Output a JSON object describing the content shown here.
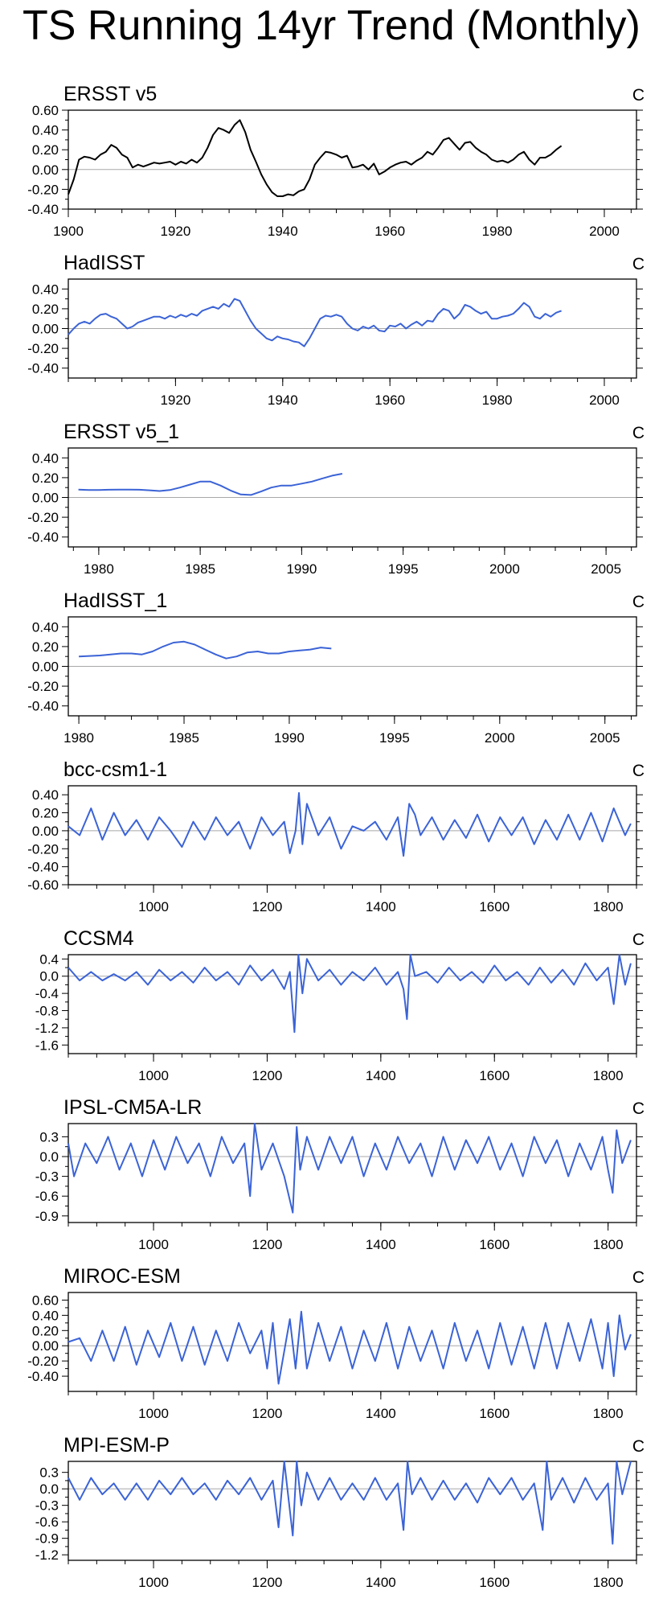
{
  "title": "TS Running 14yr Trend (Monthly)",
  "colors": {
    "observed": "#000000",
    "model": "#3b63d6",
    "zero_line": "#a8a8a8",
    "axes": "#000000"
  },
  "chart_data": [
    {
      "type": "line",
      "title": "ERSST v5",
      "unit": "C",
      "color": "#000000",
      "xlim": [
        1900,
        2006
      ],
      "ylim": [
        -0.4,
        0.6
      ],
      "xticks": [
        1900,
        1920,
        1940,
        1960,
        1980,
        2000
      ],
      "yticks": [
        -0.4,
        -0.2,
        0.0,
        0.2,
        0.4,
        0.6
      ],
      "ytick_decimals": 2,
      "x": [
        1900,
        1901,
        1902,
        1903,
        1904,
        1905,
        1906,
        1907,
        1908,
        1909,
        1910,
        1911,
        1912,
        1913,
        1914,
        1915,
        1916,
        1917,
        1918,
        1919,
        1920,
        1921,
        1922,
        1923,
        1924,
        1925,
        1926,
        1927,
        1928,
        1929,
        1930,
        1931,
        1932,
        1933,
        1934,
        1935,
        1936,
        1937,
        1938,
        1939,
        1940,
        1941,
        1942,
        1943,
        1944,
        1945,
        1946,
        1947,
        1948,
        1949,
        1950,
        1951,
        1952,
        1953,
        1954,
        1955,
        1956,
        1957,
        1958,
        1959,
        1960,
        1961,
        1962,
        1963,
        1964,
        1965,
        1966,
        1967,
        1968,
        1969,
        1970,
        1971,
        1972,
        1973,
        1974,
        1975,
        1976,
        1977,
        1978,
        1979,
        1980,
        1981,
        1982,
        1983,
        1984,
        1985,
        1986,
        1987,
        1988,
        1989,
        1990,
        1991,
        1992
      ],
      "values": [
        -0.25,
        -0.1,
        0.1,
        0.13,
        0.12,
        0.1,
        0.15,
        0.18,
        0.25,
        0.22,
        0.15,
        0.12,
        0.02,
        0.05,
        0.03,
        0.05,
        0.07,
        0.06,
        0.07,
        0.08,
        0.05,
        0.08,
        0.06,
        0.1,
        0.07,
        0.12,
        0.22,
        0.35,
        0.42,
        0.4,
        0.37,
        0.45,
        0.5,
        0.38,
        0.2,
        0.08,
        -0.05,
        -0.15,
        -0.23,
        -0.27,
        -0.27,
        -0.25,
        -0.26,
        -0.22,
        -0.2,
        -0.1,
        0.05,
        0.12,
        0.18,
        0.17,
        0.15,
        0.12,
        0.14,
        0.02,
        0.03,
        0.05,
        0.0,
        0.06,
        -0.05,
        -0.02,
        0.02,
        0.05,
        0.07,
        0.08,
        0.05,
        0.09,
        0.12,
        0.18,
        0.15,
        0.22,
        0.3,
        0.32,
        0.26,
        0.2,
        0.27,
        0.28,
        0.22,
        0.18,
        0.15,
        0.1,
        0.08,
        0.09,
        0.07,
        0.1,
        0.15,
        0.18,
        0.1,
        0.05,
        0.12,
        0.12,
        0.15,
        0.2,
        0.24
      ]
    },
    {
      "type": "line",
      "title": "HadISST",
      "unit": "C",
      "color": "#3b63d6",
      "xlim": [
        1900,
        2006
      ],
      "ylim": [
        -0.5,
        0.5
      ],
      "xticks": [
        1920,
        1940,
        1960,
        1980,
        2000
      ],
      "yticks": [
        -0.4,
        -0.2,
        0.0,
        0.2,
        0.4
      ],
      "ytick_decimals": 2,
      "x": [
        1900,
        1901,
        1902,
        1903,
        1904,
        1905,
        1906,
        1907,
        1908,
        1909,
        1910,
        1911,
        1912,
        1913,
        1914,
        1915,
        1916,
        1917,
        1918,
        1919,
        1920,
        1921,
        1922,
        1923,
        1924,
        1925,
        1926,
        1927,
        1928,
        1929,
        1930,
        1931,
        1932,
        1933,
        1934,
        1935,
        1936,
        1937,
        1938,
        1939,
        1940,
        1941,
        1942,
        1943,
        1944,
        1945,
        1946,
        1947,
        1948,
        1949,
        1950,
        1951,
        1952,
        1953,
        1954,
        1955,
        1956,
        1957,
        1958,
        1959,
        1960,
        1961,
        1962,
        1963,
        1964,
        1965,
        1966,
        1967,
        1968,
        1969,
        1970,
        1971,
        1972,
        1973,
        1974,
        1975,
        1976,
        1977,
        1978,
        1979,
        1980,
        1981,
        1982,
        1983,
        1984,
        1985,
        1986,
        1987,
        1988,
        1989,
        1990,
        1991,
        1992
      ],
      "values": [
        -0.06,
        0.0,
        0.05,
        0.07,
        0.05,
        0.1,
        0.14,
        0.15,
        0.12,
        0.1,
        0.05,
        0.0,
        0.02,
        0.06,
        0.08,
        0.1,
        0.12,
        0.12,
        0.1,
        0.13,
        0.11,
        0.14,
        0.12,
        0.15,
        0.13,
        0.18,
        0.2,
        0.22,
        0.2,
        0.25,
        0.22,
        0.3,
        0.28,
        0.18,
        0.08,
        0.0,
        -0.05,
        -0.1,
        -0.12,
        -0.08,
        -0.1,
        -0.11,
        -0.13,
        -0.14,
        -0.18,
        -0.1,
        0.0,
        0.1,
        0.13,
        0.12,
        0.14,
        0.12,
        0.05,
        0.0,
        -0.02,
        0.02,
        0.0,
        0.03,
        -0.02,
        -0.03,
        0.03,
        0.02,
        0.05,
        0.0,
        0.04,
        0.07,
        0.03,
        0.08,
        0.07,
        0.15,
        0.2,
        0.18,
        0.1,
        0.15,
        0.24,
        0.22,
        0.18,
        0.15,
        0.17,
        0.1,
        0.1,
        0.12,
        0.13,
        0.15,
        0.2,
        0.26,
        0.22,
        0.12,
        0.1,
        0.15,
        0.12,
        0.16,
        0.18
      ]
    },
    {
      "type": "line",
      "title": "ERSST v5_1",
      "unit": "C",
      "color": "#3b63d6",
      "xlim": [
        1978.5,
        2006.5
      ],
      "ylim": [
        -0.5,
        0.5
      ],
      "xticks": [
        1980,
        1985,
        1990,
        1995,
        2000,
        2005
      ],
      "yticks": [
        -0.4,
        -0.2,
        0.0,
        0.2,
        0.4
      ],
      "ytick_decimals": 2,
      "x": [
        1979,
        1979.5,
        1980,
        1980.5,
        1981,
        1981.5,
        1982,
        1982.5,
        1983,
        1983.5,
        1984,
        1984.5,
        1985,
        1985.5,
        1986,
        1986.5,
        1987,
        1987.5,
        1988,
        1988.5,
        1989,
        1989.5,
        1990,
        1990.5,
        1991,
        1991.5,
        1992
      ],
      "values": [
        0.08,
        0.075,
        0.075,
        0.078,
        0.08,
        0.08,
        0.078,
        0.072,
        0.065,
        0.075,
        0.1,
        0.13,
        0.16,
        0.16,
        0.12,
        0.07,
        0.03,
        0.025,
        0.06,
        0.1,
        0.12,
        0.12,
        0.14,
        0.16,
        0.19,
        0.22,
        0.24
      ]
    },
    {
      "type": "line",
      "title": "HadISST_1",
      "unit": "C",
      "color": "#3b63d6",
      "xlim": [
        1979.5,
        2006.5
      ],
      "ylim": [
        -0.5,
        0.5
      ],
      "xticks": [
        1980,
        1985,
        1990,
        1995,
        2000,
        2005
      ],
      "yticks": [
        -0.4,
        -0.2,
        0.0,
        0.2,
        0.4
      ],
      "ytick_decimals": 2,
      "x": [
        1980,
        1980.5,
        1981,
        1981.5,
        1982,
        1982.5,
        1983,
        1983.5,
        1984,
        1984.5,
        1985,
        1985.5,
        1986,
        1986.5,
        1987,
        1987.5,
        1988,
        1988.5,
        1989,
        1989.5,
        1990,
        1990.5,
        1991,
        1991.5,
        1992
      ],
      "values": [
        0.1,
        0.105,
        0.11,
        0.12,
        0.13,
        0.13,
        0.12,
        0.15,
        0.2,
        0.24,
        0.25,
        0.22,
        0.17,
        0.12,
        0.08,
        0.1,
        0.14,
        0.15,
        0.13,
        0.13,
        0.15,
        0.16,
        0.17,
        0.19,
        0.18
      ]
    },
    {
      "type": "line",
      "title": "bcc-csm1-1",
      "unit": "C",
      "color": "#3b63d6",
      "xlim": [
        850,
        1850
      ],
      "ylim": [
        -0.6,
        0.5
      ],
      "xticks": [
        1000,
        1200,
        1400,
        1600,
        1800
      ],
      "yticks": [
        -0.6,
        -0.4,
        -0.2,
        0.0,
        0.2,
        0.4
      ],
      "ytick_decimals": 2,
      "x": [
        850,
        870,
        890,
        910,
        930,
        950,
        970,
        990,
        1010,
        1030,
        1050,
        1070,
        1090,
        1110,
        1130,
        1150,
        1170,
        1190,
        1210,
        1230,
        1240,
        1250,
        1256,
        1262,
        1270,
        1290,
        1310,
        1330,
        1350,
        1370,
        1390,
        1410,
        1430,
        1440,
        1450,
        1460,
        1470,
        1490,
        1510,
        1530,
        1550,
        1570,
        1590,
        1610,
        1630,
        1650,
        1670,
        1690,
        1710,
        1730,
        1750,
        1770,
        1790,
        1810,
        1830,
        1840
      ],
      "values": [
        0.05,
        -0.05,
        0.25,
        -0.1,
        0.2,
        -0.05,
        0.12,
        -0.1,
        0.15,
        0.0,
        -0.18,
        0.1,
        -0.1,
        0.15,
        -0.05,
        0.1,
        -0.2,
        0.15,
        -0.05,
        0.1,
        -0.25,
        0.0,
        0.42,
        -0.15,
        0.3,
        -0.05,
        0.15,
        -0.2,
        0.05,
        0.0,
        0.1,
        -0.1,
        0.15,
        -0.28,
        0.3,
        0.18,
        -0.05,
        0.15,
        -0.1,
        0.12,
        -0.08,
        0.18,
        -0.12,
        0.15,
        -0.05,
        0.15,
        -0.15,
        0.12,
        -0.1,
        0.18,
        -0.1,
        0.2,
        -0.12,
        0.25,
        -0.05,
        0.08
      ]
    },
    {
      "type": "line",
      "title": "CCSM4",
      "unit": "C",
      "color": "#3b63d6",
      "xlim": [
        850,
        1850
      ],
      "ylim": [
        -1.8,
        0.5
      ],
      "xticks": [
        1000,
        1200,
        1400,
        1600,
        1800
      ],
      "yticks": [
        -1.6,
        -1.2,
        -0.8,
        -0.4,
        0.0,
        0.4
      ],
      "ytick_decimals": 1,
      "x": [
        850,
        870,
        890,
        910,
        930,
        950,
        970,
        990,
        1010,
        1030,
        1050,
        1070,
        1090,
        1110,
        1130,
        1150,
        1170,
        1190,
        1210,
        1230,
        1240,
        1248,
        1255,
        1262,
        1270,
        1290,
        1310,
        1330,
        1350,
        1370,
        1390,
        1410,
        1430,
        1440,
        1446,
        1452,
        1460,
        1480,
        1500,
        1520,
        1540,
        1560,
        1580,
        1600,
        1620,
        1640,
        1660,
        1680,
        1700,
        1720,
        1740,
        1760,
        1780,
        1800,
        1810,
        1820,
        1830,
        1840
      ],
      "values": [
        0.2,
        -0.1,
        0.1,
        -0.1,
        0.05,
        -0.1,
        0.1,
        -0.2,
        0.15,
        -0.1,
        0.1,
        -0.15,
        0.2,
        -0.1,
        0.1,
        -0.2,
        0.25,
        -0.1,
        0.15,
        -0.3,
        0.1,
        -1.3,
        0.5,
        -0.4,
        0.4,
        -0.1,
        0.15,
        -0.2,
        0.1,
        -0.1,
        0.2,
        -0.2,
        0.1,
        -0.3,
        -1.0,
        0.5,
        0.0,
        0.1,
        -0.15,
        0.2,
        -0.1,
        0.1,
        -0.15,
        0.25,
        -0.1,
        0.1,
        -0.2,
        0.2,
        -0.15,
        0.15,
        -0.2,
        0.3,
        -0.1,
        0.2,
        -0.65,
        0.5,
        -0.2,
        0.3
      ]
    },
    {
      "type": "line",
      "title": "IPSL-CM5A-LR",
      "unit": "C",
      "color": "#3b63d6",
      "xlim": [
        850,
        1850
      ],
      "ylim": [
        -1.0,
        0.5
      ],
      "xticks": [
        1000,
        1200,
        1400,
        1600,
        1800
      ],
      "yticks": [
        -0.9,
        -0.6,
        -0.3,
        0.0,
        0.3
      ],
      "ytick_decimals": 1,
      "x": [
        850,
        860,
        880,
        900,
        920,
        940,
        960,
        980,
        1000,
        1020,
        1040,
        1060,
        1080,
        1100,
        1120,
        1140,
        1160,
        1170,
        1178,
        1190,
        1210,
        1230,
        1245,
        1252,
        1258,
        1270,
        1290,
        1310,
        1330,
        1350,
        1370,
        1390,
        1410,
        1430,
        1450,
        1470,
        1490,
        1510,
        1530,
        1550,
        1570,
        1590,
        1610,
        1630,
        1650,
        1670,
        1690,
        1710,
        1730,
        1750,
        1770,
        1790,
        1800,
        1808,
        1815,
        1825,
        1840
      ],
      "values": [
        0.2,
        -0.3,
        0.2,
        -0.1,
        0.3,
        -0.2,
        0.2,
        -0.3,
        0.25,
        -0.2,
        0.3,
        -0.1,
        0.2,
        -0.3,
        0.3,
        -0.1,
        0.2,
        -0.6,
        0.5,
        -0.2,
        0.2,
        -0.3,
        -0.85,
        0.45,
        -0.2,
        0.3,
        -0.2,
        0.3,
        -0.1,
        0.3,
        -0.3,
        0.2,
        -0.2,
        0.3,
        -0.1,
        0.2,
        -0.3,
        0.3,
        -0.2,
        0.25,
        -0.1,
        0.3,
        -0.2,
        0.2,
        -0.3,
        0.3,
        -0.1,
        0.25,
        -0.3,
        0.2,
        -0.2,
        0.3,
        -0.2,
        -0.55,
        0.4,
        -0.1,
        0.25
      ]
    },
    {
      "type": "line",
      "title": "MIROC-ESM",
      "unit": "C",
      "color": "#3b63d6",
      "xlim": [
        850,
        1850
      ],
      "ylim": [
        -0.6,
        0.7
      ],
      "xticks": [
        1000,
        1200,
        1400,
        1600,
        1800
      ],
      "yticks": [
        -0.4,
        -0.2,
        0.0,
        0.2,
        0.4,
        0.6
      ],
      "ytick_decimals": 2,
      "x": [
        850,
        870,
        890,
        910,
        930,
        950,
        970,
        990,
        1010,
        1030,
        1050,
        1070,
        1090,
        1110,
        1130,
        1150,
        1170,
        1190,
        1200,
        1210,
        1220,
        1240,
        1250,
        1260,
        1270,
        1290,
        1310,
        1330,
        1350,
        1370,
        1390,
        1410,
        1430,
        1450,
        1470,
        1490,
        1510,
        1530,
        1550,
        1570,
        1590,
        1610,
        1630,
        1650,
        1670,
        1690,
        1710,
        1730,
        1750,
        1770,
        1790,
        1800,
        1810,
        1820,
        1830,
        1840
      ],
      "values": [
        0.05,
        0.1,
        -0.2,
        0.2,
        -0.2,
        0.25,
        -0.25,
        0.2,
        -0.15,
        0.3,
        -0.2,
        0.25,
        -0.25,
        0.2,
        -0.2,
        0.3,
        -0.1,
        0.2,
        -0.3,
        0.3,
        -0.5,
        0.35,
        -0.3,
        0.45,
        -0.3,
        0.3,
        -0.2,
        0.25,
        -0.3,
        0.2,
        -0.2,
        0.3,
        -0.3,
        0.25,
        -0.2,
        0.2,
        -0.3,
        0.3,
        -0.2,
        0.2,
        -0.3,
        0.3,
        -0.25,
        0.25,
        -0.3,
        0.3,
        -0.3,
        0.3,
        -0.2,
        0.35,
        -0.3,
        0.3,
        -0.4,
        0.4,
        -0.05,
        0.15
      ]
    },
    {
      "type": "line",
      "title": "MPI-ESM-P",
      "unit": "C",
      "color": "#3b63d6",
      "xlim": [
        850,
        1850
      ],
      "ylim": [
        -1.3,
        0.5
      ],
      "xticks": [
        1000,
        1200,
        1400,
        1600,
        1800
      ],
      "yticks": [
        -1.2,
        -0.9,
        -0.6,
        -0.3,
        0.0,
        0.3
      ],
      "ytick_decimals": 1,
      "x": [
        850,
        870,
        890,
        910,
        930,
        950,
        970,
        990,
        1010,
        1030,
        1050,
        1070,
        1090,
        1110,
        1130,
        1150,
        1170,
        1190,
        1210,
        1220,
        1230,
        1245,
        1252,
        1260,
        1270,
        1290,
        1310,
        1330,
        1350,
        1370,
        1390,
        1410,
        1430,
        1440,
        1447,
        1455,
        1470,
        1490,
        1510,
        1530,
        1550,
        1570,
        1590,
        1610,
        1630,
        1650,
        1670,
        1685,
        1692,
        1700,
        1720,
        1740,
        1760,
        1780,
        1800,
        1808,
        1815,
        1825,
        1840
      ],
      "values": [
        0.2,
        -0.2,
        0.2,
        -0.1,
        0.1,
        -0.2,
        0.1,
        -0.2,
        0.15,
        -0.1,
        0.2,
        -0.1,
        0.1,
        -0.2,
        0.15,
        -0.1,
        0.2,
        -0.2,
        0.15,
        -0.7,
        0.5,
        -0.85,
        0.5,
        -0.3,
        0.3,
        -0.2,
        0.2,
        -0.2,
        0.1,
        -0.2,
        0.2,
        -0.2,
        0.1,
        -0.75,
        0.5,
        -0.1,
        0.2,
        -0.2,
        0.15,
        -0.2,
        0.1,
        -0.25,
        0.2,
        -0.1,
        0.2,
        -0.2,
        0.1,
        -0.75,
        0.5,
        -0.2,
        0.2,
        -0.25,
        0.2,
        -0.2,
        0.1,
        -1.0,
        0.5,
        -0.1,
        0.5
      ]
    }
  ]
}
